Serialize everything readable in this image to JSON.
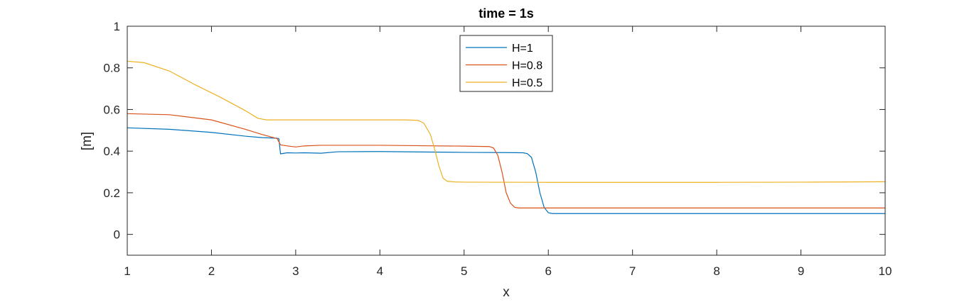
{
  "chart_data": {
    "type": "line",
    "title": "time = 1s",
    "xlabel": "x",
    "ylabel": "[m]",
    "xlim": [
      1,
      10
    ],
    "ylim": [
      -0.1,
      1
    ],
    "xticks": [
      1,
      2,
      3,
      4,
      5,
      6,
      7,
      8,
      9,
      10
    ],
    "yticks": [
      0,
      0.2,
      0.4,
      0.6,
      0.8,
      1
    ],
    "grid": false,
    "legend_position": "top-center",
    "series": [
      {
        "name": "H=1",
        "color": "#0072BD",
        "points": [
          [
            1,
            0.512
          ],
          [
            1.5,
            0.505
          ],
          [
            2,
            0.49
          ],
          [
            2.4,
            0.472
          ],
          [
            2.6,
            0.465
          ],
          [
            2.78,
            0.462
          ],
          [
            2.8,
            0.46
          ],
          [
            2.82,
            0.387
          ],
          [
            2.9,
            0.392
          ],
          [
            3.0,
            0.391
          ],
          [
            3.1,
            0.392
          ],
          [
            3.3,
            0.39
          ],
          [
            3.5,
            0.397
          ],
          [
            4,
            0.398
          ],
          [
            4.5,
            0.396
          ],
          [
            5,
            0.394
          ],
          [
            5.5,
            0.393
          ],
          [
            5.7,
            0.392
          ],
          [
            5.75,
            0.388
          ],
          [
            5.8,
            0.37
          ],
          [
            5.85,
            0.3
          ],
          [
            5.9,
            0.2
          ],
          [
            5.95,
            0.13
          ],
          [
            6.0,
            0.104
          ],
          [
            6.05,
            0.1
          ],
          [
            7,
            0.1
          ],
          [
            8,
            0.1
          ],
          [
            9,
            0.1
          ],
          [
            10,
            0.1
          ]
        ]
      },
      {
        "name": "H=0.8",
        "color": "#D95319",
        "points": [
          [
            1,
            0.58
          ],
          [
            1.5,
            0.575
          ],
          [
            2,
            0.55
          ],
          [
            2.4,
            0.505
          ],
          [
            2.6,
            0.48
          ],
          [
            2.78,
            0.46
          ],
          [
            2.82,
            0.43
          ],
          [
            2.9,
            0.425
          ],
          [
            3,
            0.42
          ],
          [
            3.1,
            0.425
          ],
          [
            3.3,
            0.428
          ],
          [
            4,
            0.428
          ],
          [
            4.5,
            0.426
          ],
          [
            5,
            0.424
          ],
          [
            5.3,
            0.422
          ],
          [
            5.35,
            0.415
          ],
          [
            5.4,
            0.38
          ],
          [
            5.45,
            0.3
          ],
          [
            5.5,
            0.2
          ],
          [
            5.55,
            0.15
          ],
          [
            5.6,
            0.13
          ],
          [
            5.65,
            0.127
          ],
          [
            6,
            0.127
          ],
          [
            7,
            0.127
          ],
          [
            8,
            0.127
          ],
          [
            9,
            0.127
          ],
          [
            10,
            0.127
          ]
        ]
      },
      {
        "name": "H=0.5",
        "color": "#EDB120",
        "points": [
          [
            1,
            0.832
          ],
          [
            1.2,
            0.825
          ],
          [
            1.5,
            0.785
          ],
          [
            1.8,
            0.72
          ],
          [
            2.1,
            0.66
          ],
          [
            2.4,
            0.595
          ],
          [
            2.55,
            0.558
          ],
          [
            2.65,
            0.55
          ],
          [
            3,
            0.55
          ],
          [
            3.5,
            0.55
          ],
          [
            4,
            0.55
          ],
          [
            4.3,
            0.55
          ],
          [
            4.45,
            0.548
          ],
          [
            4.52,
            0.535
          ],
          [
            4.6,
            0.48
          ],
          [
            4.65,
            0.41
          ],
          [
            4.7,
            0.33
          ],
          [
            4.75,
            0.27
          ],
          [
            4.8,
            0.255
          ],
          [
            4.9,
            0.252
          ],
          [
            5,
            0.251
          ],
          [
            6,
            0.25
          ],
          [
            7,
            0.25
          ],
          [
            8,
            0.25
          ],
          [
            9,
            0.251
          ],
          [
            10,
            0.253
          ]
        ]
      }
    ]
  }
}
